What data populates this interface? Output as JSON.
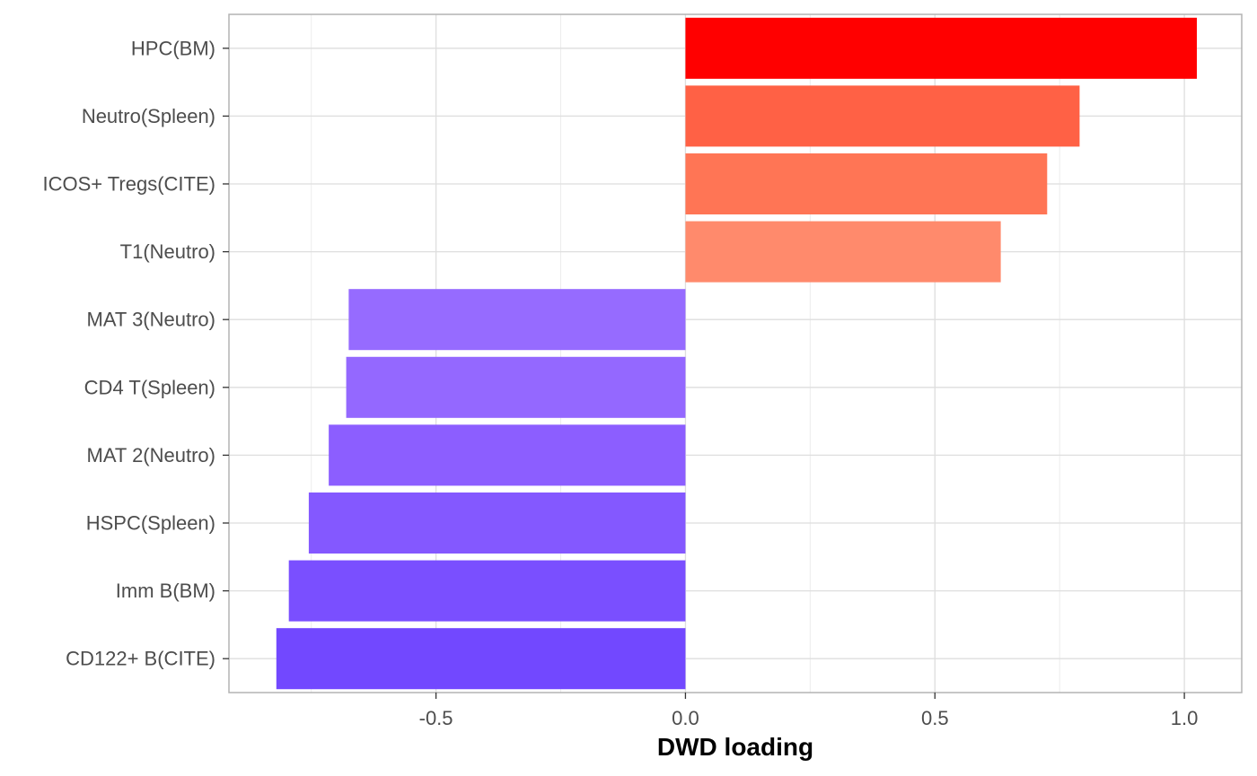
{
  "chart_data": {
    "type": "bar",
    "orientation": "horizontal",
    "xlabel": "DWD loading",
    "ylabel": "",
    "xlim": [
      -0.915,
      1.115
    ],
    "x_ticks": [
      -0.5,
      0.0,
      0.5,
      1.0
    ],
    "x_tick_labels": [
      "-0.5",
      "0.0",
      "0.5",
      "1.0"
    ],
    "grid": true,
    "legend": "none",
    "categories": [
      "HPC(BM)",
      "Neutro(Spleen)",
      "ICOS+ Tregs(CITE)",
      "T1(Neutro)",
      "MAT 3(Neutro)",
      "CD4 T(Spleen)",
      "MAT 2(Neutro)",
      "HSPC(Spleen)",
      "Imm B(BM)",
      "CD122+ B(CITE)"
    ],
    "values": [
      1.025,
      0.79,
      0.725,
      0.632,
      -0.675,
      -0.68,
      -0.715,
      -0.755,
      -0.795,
      -0.82
    ],
    "colors": [
      "#FF0000",
      "#FF6145",
      "#FF7555",
      "#FF8A6C",
      "#966BFF",
      "#9468FF",
      "#8C5EFF",
      "#8458FF",
      "#7A4FFF",
      "#7248FF"
    ]
  }
}
